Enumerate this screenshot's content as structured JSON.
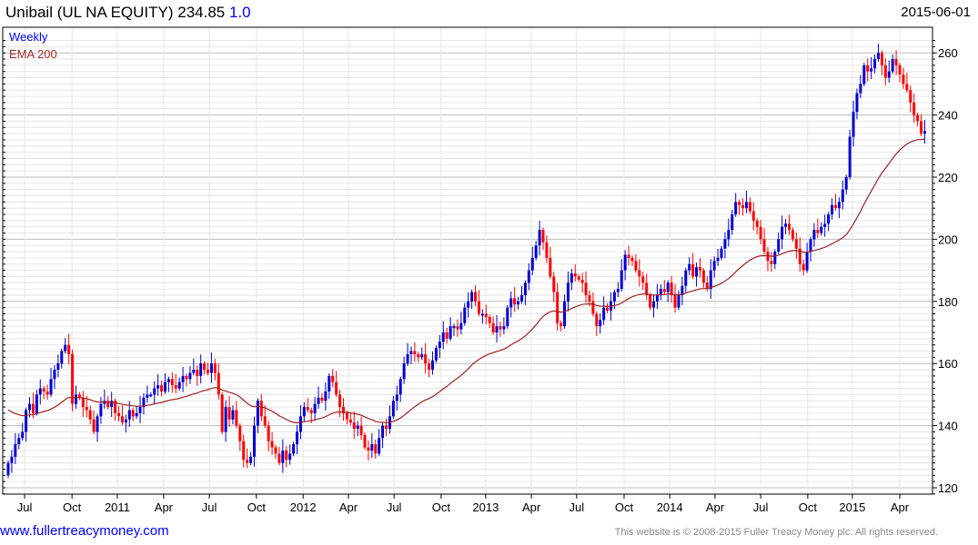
{
  "header": {
    "name": "Unibail (UL NA EQUITY)",
    "last": "234.85",
    "change": "1.0",
    "date": "2015-06-01"
  },
  "legend": {
    "period": "Weekly",
    "indicator": "EMA 200"
  },
  "footer": {
    "link": "www.fullertreacymoney.com",
    "copyright": "This website is © 2008-2015 Fuller Treacy Money plc. All rights reserved."
  },
  "colors": {
    "up": "#0000d0",
    "down": "#ff0000",
    "ema": "#a02020",
    "grid_major": "#bbbbbb",
    "grid_minor": "#e6e6e6"
  },
  "chart_data": {
    "type": "candlestick",
    "title": "Unibail (UL NA EQUITY)",
    "ylim": [
      118,
      264
    ],
    "y_ticks": [
      "120",
      "140",
      "160",
      "180",
      "200",
      "220",
      "240",
      "260"
    ],
    "x_ticks": [
      {
        "label": "Jul",
        "week": 4.6
      },
      {
        "label": "Oct",
        "week": 17.9
      },
      {
        "label": "2011",
        "week": 30.6
      },
      {
        "label": "Apr",
        "week": 43.6
      },
      {
        "label": "Jul",
        "week": 56.4
      },
      {
        "label": "Oct",
        "week": 69.6
      },
      {
        "label": "2012",
        "week": 82.7
      },
      {
        "label": "Apr",
        "week": 95.4
      },
      {
        "label": "Jul",
        "week": 108.2
      },
      {
        "label": "Oct",
        "week": 121.4
      },
      {
        "label": "2013",
        "week": 133.9
      },
      {
        "label": "Apr",
        "week": 146.7
      },
      {
        "label": "Jul",
        "week": 159.4
      },
      {
        "label": "Oct",
        "week": 172.7
      },
      {
        "label": "2014",
        "week": 185.5
      },
      {
        "label": "Apr",
        "week": 198.2
      },
      {
        "label": "Jul",
        "week": 211.0
      },
      {
        "label": "Oct",
        "week": 224.2
      },
      {
        "label": "2015",
        "week": 236.7
      },
      {
        "label": "Apr",
        "week": 250.0
      }
    ],
    "ema_period_weeks": 40,
    "ema_seed": 146,
    "first_open": 124,
    "close": [
      128,
      130,
      134,
      136,
      138,
      145,
      147,
      144,
      150,
      152,
      151,
      150,
      155,
      158,
      160,
      164,
      166,
      163,
      147,
      150,
      149,
      146,
      145,
      142,
      138,
      143,
      147,
      148,
      146,
      148,
      144,
      143,
      141,
      142,
      145,
      143,
      144,
      146,
      149,
      150,
      150,
      152,
      153,
      151,
      154,
      155,
      153,
      152,
      154,
      156,
      155,
      157,
      158,
      156,
      160,
      158,
      157,
      160,
      157,
      150,
      138,
      146,
      142,
      145,
      140,
      135,
      129,
      128,
      130,
      140,
      148,
      143,
      140,
      135,
      133,
      131,
      128,
      132,
      129,
      131,
      134,
      138,
      143,
      146,
      145,
      144,
      147,
      149,
      148,
      151,
      156,
      154,
      150,
      146,
      144,
      142,
      141,
      139,
      140,
      137,
      133,
      132,
      134,
      131,
      136,
      140,
      139,
      143,
      148,
      150,
      155,
      160,
      163,
      164,
      163,
      162,
      163,
      160,
      158,
      161,
      165,
      167,
      170,
      168,
      172,
      172,
      171,
      173,
      178,
      180,
      183,
      180,
      176,
      176,
      175,
      173,
      170,
      172,
      171,
      172,
      178,
      181,
      179,
      180,
      182,
      186,
      190,
      194,
      198,
      203,
      199,
      194,
      188,
      183,
      173,
      172,
      180,
      186,
      189,
      188,
      187,
      186,
      182,
      180,
      176,
      172,
      174,
      178,
      177,
      180,
      183,
      184,
      190,
      195,
      194,
      193,
      190,
      188,
      186,
      182,
      178,
      180,
      182,
      184,
      183,
      186,
      182,
      178,
      182,
      185,
      190,
      192,
      188,
      191,
      190,
      186,
      184,
      190,
      193,
      194,
      197,
      200,
      203,
      208,
      212,
      211,
      210,
      212,
      209,
      206,
      204,
      200,
      196,
      193,
      192,
      196,
      200,
      204,
      205,
      203,
      200,
      197,
      192,
      190,
      196,
      200,
      203,
      202,
      204,
      205,
      208,
      211,
      210,
      212,
      216,
      220,
      233,
      241,
      247,
      250,
      256,
      254,
      255,
      258,
      260,
      256,
      252,
      254,
      258,
      256,
      253,
      250,
      248,
      244,
      240,
      238,
      234,
      234.85
    ]
  }
}
